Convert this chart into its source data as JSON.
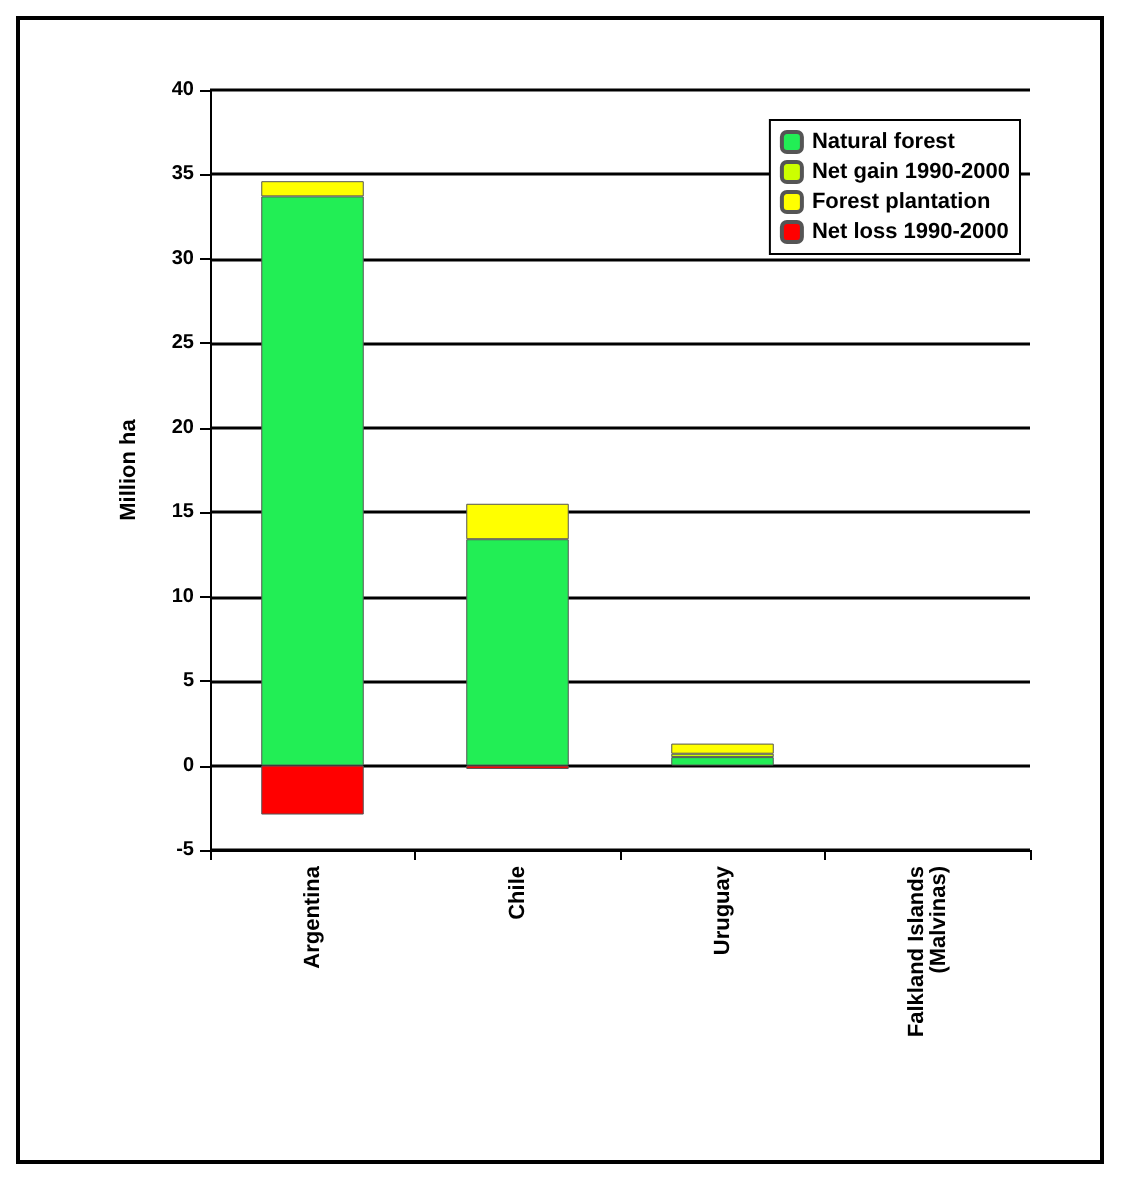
{
  "chart_data": {
    "type": "bar",
    "ylabel": "Million ha",
    "stacked": true,
    "categories": [
      "Argentina",
      "Chile",
      "Uruguay",
      "Falkland Islands\n(Malvinas)"
    ],
    "series": [
      {
        "name": "Natural forest",
        "color": "#22ee55",
        "values": [
          33.7,
          13.4,
          0.5,
          null
        ]
      },
      {
        "name": "Net gain 1990-2000",
        "color": "#ccff00",
        "values": [
          null,
          null,
          0.2,
          null
        ]
      },
      {
        "name": "Forest plantation",
        "color": "#ffff00",
        "values": [
          0.9,
          2.1,
          0.6,
          null
        ]
      },
      {
        "name": "Net loss 1990-2000",
        "color": "#ff0000",
        "values": [
          -2.9,
          -0.2,
          null,
          null
        ]
      }
    ],
    "ylim": [
      -5,
      40
    ],
    "yticks": [
      -5,
      0,
      5,
      10,
      15,
      20,
      25,
      30,
      35,
      40
    ],
    "grid": "y",
    "legend": "top right"
  }
}
